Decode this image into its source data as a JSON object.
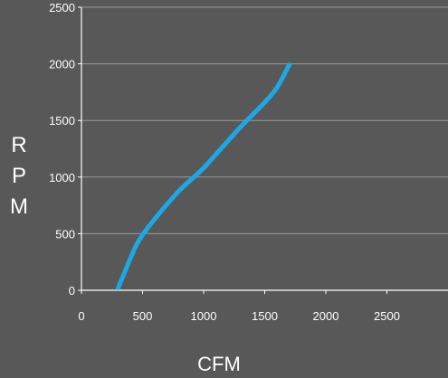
{
  "chart_data": {
    "type": "line",
    "xlabel": "CFM",
    "ylabel": "RPM",
    "ylabel_letters": [
      "R",
      "P",
      "M"
    ],
    "xlim": [
      0,
      3000
    ],
    "ylim": [
      0,
      2500
    ],
    "x_ticks": [
      0,
      500,
      1000,
      1500,
      2000,
      2500
    ],
    "y_ticks": [
      0,
      500,
      1000,
      1500,
      2000,
      2500
    ],
    "grid": "horizontal",
    "legend": "none",
    "series": [
      {
        "color": "#1aa9e4",
        "x": [
          300,
          350,
          400,
          450,
          500,
          600,
          700,
          800,
          900,
          1000,
          1100,
          1200,
          1300,
          1400,
          1500,
          1600,
          1700
        ],
        "y": [
          20,
          150,
          280,
          400,
          490,
          630,
          760,
          880,
          980,
          1080,
          1200,
          1320,
          1440,
          1550,
          1660,
          1790,
          1990
        ]
      }
    ]
  },
  "colors": {
    "background": "#585858",
    "axis": "#ffffff",
    "grid": "#9a9a9a",
    "text": "#ffffff"
  }
}
